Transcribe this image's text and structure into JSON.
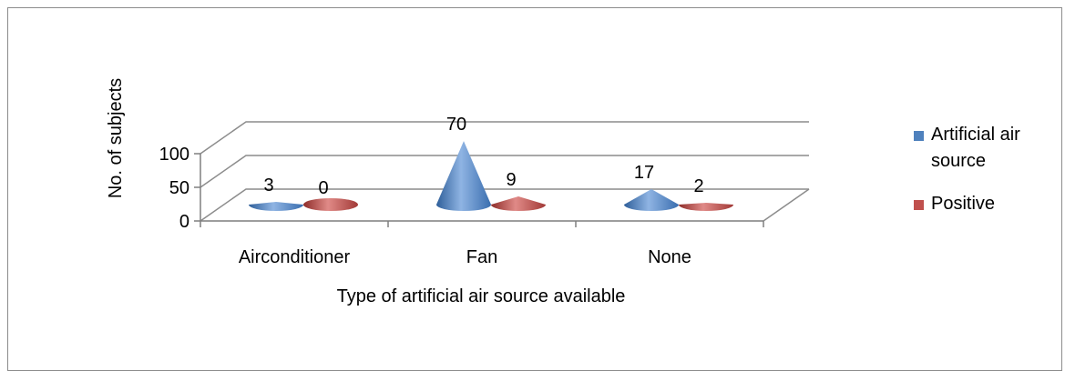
{
  "chart_data": {
    "type": "bar",
    "subtype": "3d-cone",
    "categories": [
      "Airconditioner",
      "Fan",
      "None"
    ],
    "series": [
      {
        "name": "Artificial air source",
        "values": [
          3,
          70,
          17
        ],
        "color": "#4f81bd"
      },
      {
        "name": "Positive",
        "values": [
          0,
          9,
          2
        ],
        "color": "#c0504d"
      }
    ],
    "data_labels": [
      [
        "3",
        "70",
        "17"
      ],
      [
        "0",
        "9",
        "2"
      ]
    ],
    "ylim": [
      0,
      100
    ],
    "yticks": [
      0,
      50,
      100
    ],
    "ytick_labels": [
      "0",
      "50",
      "100"
    ],
    "xlabel": "Type  of artificial air source available",
    "ylabel": "No. of subjects",
    "grid": true,
    "legend_position": "right",
    "legend_lines": [
      [
        "Artificial air",
        "source"
      ],
      [
        "Positive"
      ]
    ]
  }
}
